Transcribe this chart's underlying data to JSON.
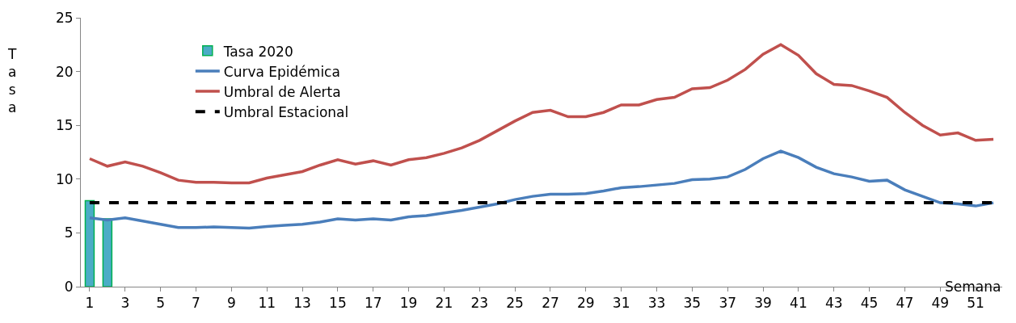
{
  "chart_data": {
    "type": "line",
    "ylabel": "Tasa",
    "xlabel": "Semana",
    "x": [
      1,
      2,
      3,
      4,
      5,
      6,
      7,
      8,
      9,
      10,
      11,
      12,
      13,
      14,
      15,
      16,
      17,
      18,
      19,
      20,
      21,
      22,
      23,
      24,
      25,
      26,
      27,
      28,
      29,
      30,
      31,
      32,
      33,
      34,
      35,
      36,
      37,
      38,
      39,
      40,
      41,
      42,
      43,
      44,
      45,
      46,
      47,
      48,
      49,
      50,
      51,
      52
    ],
    "xlim": [
      0.5,
      52.5
    ],
    "xticks": [
      1,
      3,
      5,
      7,
      9,
      11,
      13,
      15,
      17,
      19,
      21,
      23,
      25,
      27,
      29,
      31,
      33,
      35,
      37,
      39,
      41,
      43,
      45,
      47,
      49,
      51
    ],
    "ylim": [
      0,
      25
    ],
    "yticks": [
      0,
      5,
      10,
      15,
      20,
      25
    ],
    "legend": "top left",
    "series": [
      {
        "name": "Tasa 2020",
        "type": "bar",
        "color": "#4bacc6",
        "values": [
          8.0,
          6.3,
          null,
          null,
          null,
          null,
          null,
          null,
          null,
          null,
          null,
          null,
          null,
          null,
          null,
          null,
          null,
          null,
          null,
          null,
          null,
          null,
          null,
          null,
          null,
          null,
          null,
          null,
          null,
          null,
          null,
          null,
          null,
          null,
          null,
          null,
          null,
          null,
          null,
          null,
          null,
          null,
          null,
          null,
          null,
          null,
          null,
          null,
          null,
          null,
          null,
          null
        ]
      },
      {
        "name": "Curva Epidémica",
        "color": "#4a7ebb",
        "line_style": "solid",
        "values": [
          6.4,
          6.2,
          6.4,
          6.1,
          5.8,
          5.5,
          5.5,
          5.55,
          5.5,
          5.45,
          5.6,
          5.7,
          5.8,
          6.0,
          6.3,
          6.2,
          6.3,
          6.2,
          6.5,
          6.6,
          6.85,
          7.1,
          7.4,
          7.7,
          8.1,
          8.4,
          8.6,
          8.6,
          8.65,
          8.9,
          9.2,
          9.3,
          9.45,
          9.6,
          9.95,
          10.0,
          10.2,
          10.9,
          11.9,
          12.6,
          12.0,
          11.1,
          10.5,
          10.2,
          9.8,
          9.9,
          9.0,
          8.4,
          7.8,
          7.7,
          7.5,
          7.8
        ]
      },
      {
        "name": "Umbral de Alerta",
        "color": "#c0504d",
        "line_style": "solid",
        "values": [
          11.9,
          11.2,
          11.6,
          11.2,
          10.6,
          9.9,
          9.7,
          9.7,
          9.65,
          9.65,
          10.1,
          10.4,
          10.7,
          11.3,
          11.8,
          11.4,
          11.7,
          11.3,
          11.8,
          12.0,
          12.4,
          12.9,
          13.6,
          14.5,
          15.4,
          16.2,
          16.4,
          15.8,
          15.8,
          16.2,
          16.9,
          16.9,
          17.4,
          17.6,
          18.4,
          18.5,
          19.2,
          20.2,
          21.6,
          22.5,
          21.5,
          19.8,
          18.8,
          18.7,
          18.2,
          17.6,
          16.2,
          15.0,
          14.1,
          14.3,
          13.6,
          13.7
        ]
      },
      {
        "name": "Umbral Estacional",
        "color": "#000000",
        "line_style": "dashed",
        "values": [
          7.8,
          7.8,
          7.8,
          7.8,
          7.8,
          7.8,
          7.8,
          7.8,
          7.8,
          7.8,
          7.8,
          7.8,
          7.8,
          7.8,
          7.8,
          7.8,
          7.8,
          7.8,
          7.8,
          7.8,
          7.8,
          7.8,
          7.8,
          7.8,
          7.8,
          7.8,
          7.8,
          7.8,
          7.8,
          7.8,
          7.8,
          7.8,
          7.8,
          7.8,
          7.8,
          7.8,
          7.8,
          7.8,
          7.8,
          7.8,
          7.8,
          7.8,
          7.8,
          7.8,
          7.8,
          7.8,
          7.8,
          7.8,
          7.8,
          7.8,
          7.8,
          7.8
        ]
      }
    ]
  }
}
